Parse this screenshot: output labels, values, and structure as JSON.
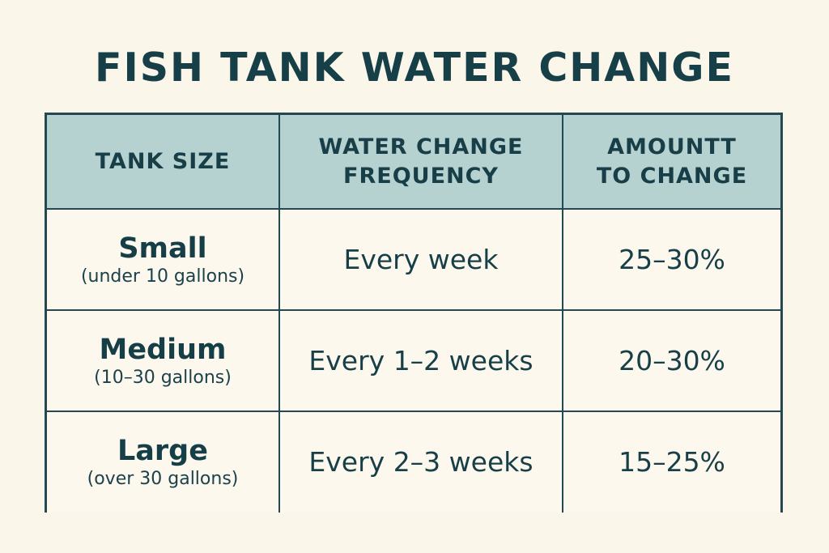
{
  "title": "FISH TANK WATER CHANGE",
  "table": {
    "headers": [
      {
        "line1": "TANK SIZE",
        "line2": ""
      },
      {
        "line1": "WATER CHANGE",
        "line2": "FREQUENCY"
      },
      {
        "line1": "AMOUNTT",
        "line2": "TO CHANGE"
      }
    ],
    "rows": [
      {
        "size": "Small",
        "note": "(under 10 gallons)",
        "frequency": "Every week",
        "amount": "25–30%"
      },
      {
        "size": "Medium",
        "note": "(10–30 gallons)",
        "frequency": "Every 1–2 weeks",
        "amount": "20–30%"
      },
      {
        "size": "Large",
        "note": "(over 30 gallons)",
        "frequency": "Every 2–3 weeks",
        "amount": "15–25%"
      }
    ]
  },
  "colors": {
    "background": "#fbf6ea",
    "header_fill": "#b6d2d0",
    "text": "#173f48",
    "border": "#24484f"
  }
}
